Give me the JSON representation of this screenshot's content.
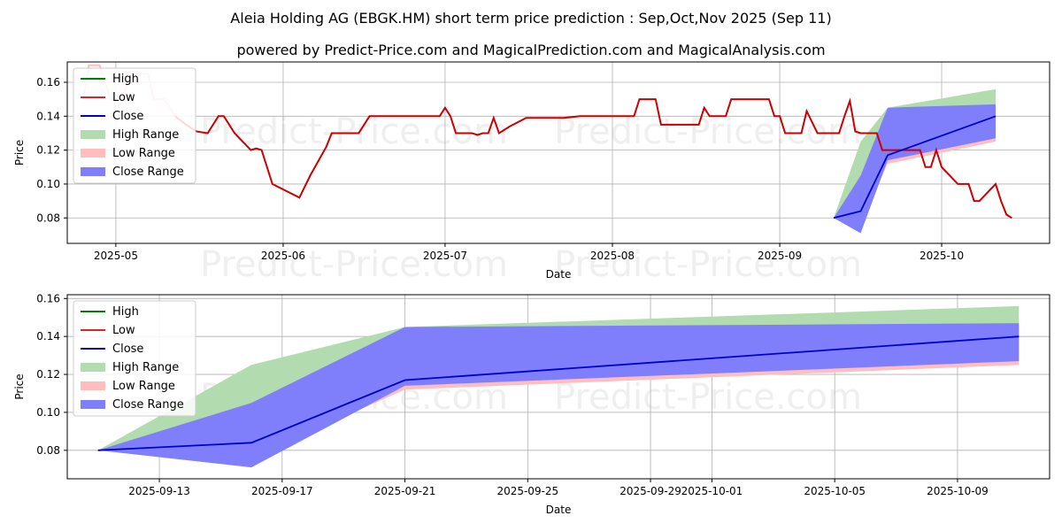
{
  "title": "Aleia Holding AG (EBGK.HM) short term price prediction : Sep,Oct,Nov 2025 (Sep 11)",
  "subtitle": "powered by Predict-Price.com and MagicalPrediction.com and MagicalAnalysis.com",
  "watermark": "Predict-Price.com",
  "colors": {
    "high": "#008000",
    "low": "#d62728",
    "low_line": "#cc0000",
    "close": "#0000cc",
    "high_range": "#b2dbb0",
    "low_range": "#ffbdbd",
    "close_range": "#7f7ffc"
  },
  "chart_data": [
    {
      "type": "line",
      "xlabel": "Date",
      "ylabel": "Price",
      "x_range": [
        "2025-04-22",
        "2025-10-21"
      ],
      "ylim": [
        0.065,
        0.172
      ],
      "y_ticks": [
        0.08,
        0.1,
        0.12,
        0.14,
        0.16
      ],
      "y_tick_labels": [
        "0.08",
        "0.10",
        "0.12",
        "0.14",
        "0.16"
      ],
      "x_ticks": [
        "2025-05-01",
        "2025-06-01",
        "2025-07-01",
        "2025-08-01",
        "2025-09-01",
        "2025-10-01"
      ],
      "x_tick_labels": [
        "2025-05",
        "2025-06",
        "2025-07",
        "2025-08",
        "2025-09",
        "2025-10"
      ],
      "grid": true,
      "legend_position": "top-left",
      "legend": [
        "High",
        "Low",
        "Close",
        "High Range",
        "Low Range",
        "Close Range"
      ],
      "history_high": [
        [
          "2025-04-25",
          0.15
        ],
        [
          "2025-04-26",
          0.17
        ],
        [
          "2025-04-28",
          0.17
        ],
        [
          "2025-04-30",
          0.15
        ],
        [
          "2025-05-02",
          0.15
        ],
        [
          "2025-05-04",
          0.165
        ],
        [
          "2025-05-07",
          0.165
        ],
        [
          "2025-05-08",
          0.15
        ],
        [
          "2025-05-10",
          0.15
        ],
        [
          "2025-05-12",
          0.14
        ]
      ],
      "history_low": [
        [
          "2025-05-12",
          0.14
        ],
        [
          "2025-05-14",
          0.135
        ],
        [
          "2025-05-16",
          0.131
        ],
        [
          "2025-05-18",
          0.13
        ],
        [
          "2025-05-20",
          0.14
        ],
        [
          "2025-05-21",
          0.14
        ],
        [
          "2025-05-23",
          0.13
        ],
        [
          "2025-05-26",
          0.12
        ],
        [
          "2025-05-27",
          0.121
        ],
        [
          "2025-05-28",
          0.12
        ],
        [
          "2025-05-30",
          0.1
        ],
        [
          "2025-06-04",
          0.092
        ],
        [
          "2025-06-06",
          0.105
        ],
        [
          "2025-06-09",
          0.122
        ],
        [
          "2025-06-10",
          0.13
        ],
        [
          "2025-06-13",
          0.13
        ],
        [
          "2025-06-15",
          0.13
        ],
        [
          "2025-06-17",
          0.14
        ],
        [
          "2025-06-19",
          0.14
        ],
        [
          "2025-06-23",
          0.14
        ],
        [
          "2025-06-30",
          0.14
        ],
        [
          "2025-07-01",
          0.145
        ],
        [
          "2025-07-02",
          0.14
        ],
        [
          "2025-07-03",
          0.13
        ],
        [
          "2025-07-06",
          0.13
        ],
        [
          "2025-07-07",
          0.129
        ],
        [
          "2025-07-08",
          0.13
        ],
        [
          "2025-07-09",
          0.13
        ],
        [
          "2025-07-10",
          0.139
        ],
        [
          "2025-07-11",
          0.13
        ],
        [
          "2025-07-13",
          0.134
        ],
        [
          "2025-07-16",
          0.139
        ],
        [
          "2025-07-20",
          0.139
        ],
        [
          "2025-07-23",
          0.139
        ],
        [
          "2025-07-26",
          0.14
        ],
        [
          "2025-08-02",
          0.14
        ],
        [
          "2025-08-05",
          0.14
        ],
        [
          "2025-08-06",
          0.15
        ],
        [
          "2025-08-09",
          0.15
        ],
        [
          "2025-08-10",
          0.135
        ],
        [
          "2025-08-14",
          0.135
        ],
        [
          "2025-08-17",
          0.135
        ],
        [
          "2025-08-18",
          0.145
        ],
        [
          "2025-08-19",
          0.14
        ],
        [
          "2025-08-22",
          0.14
        ],
        [
          "2025-08-23",
          0.15
        ],
        [
          "2025-08-27",
          0.15
        ],
        [
          "2025-08-30",
          0.15
        ],
        [
          "2025-08-31",
          0.14
        ],
        [
          "2025-09-01",
          0.14
        ],
        [
          "2025-09-02",
          0.13
        ],
        [
          "2025-09-05",
          0.13
        ],
        [
          "2025-09-06",
          0.143
        ],
        [
          "2025-09-08",
          0.13
        ],
        [
          "2025-09-12",
          0.13
        ],
        [
          "2025-09-13",
          0.14
        ],
        [
          "2025-09-14",
          0.149
        ],
        [
          "2025-09-15",
          0.131
        ],
        [
          "2025-09-16",
          0.13
        ],
        [
          "2025-09-19",
          0.13
        ],
        [
          "2025-09-20",
          0.12
        ],
        [
          "2025-09-25",
          0.12
        ],
        [
          "2025-09-27",
          0.12
        ],
        [
          "2025-09-28",
          0.11
        ],
        [
          "2025-09-29",
          0.11
        ],
        [
          "2025-09-30",
          0.12
        ],
        [
          "2025-10-01",
          0.11
        ],
        [
          "2025-10-04",
          0.1
        ],
        [
          "2025-10-06",
          0.1
        ],
        [
          "2025-10-07",
          0.09
        ],
        [
          "2025-10-08",
          0.09
        ],
        [
          "2025-10-11",
          0.1
        ],
        [
          "2025-10-12",
          0.09
        ],
        [
          "2025-10-13",
          0.082
        ],
        [
          "2025-10-14",
          0.08
        ]
      ]
    },
    {
      "type": "area",
      "xlabel": "Date",
      "ylabel": "Price",
      "x_range": [
        "2025-09-10",
        "2025-10-12"
      ],
      "ylim": [
        0.065,
        0.162
      ],
      "y_ticks": [
        0.08,
        0.1,
        0.12,
        0.14,
        0.16
      ],
      "y_tick_labels": [
        "0.08",
        "0.10",
        "0.12",
        "0.14",
        "0.16"
      ],
      "x_ticks": [
        "2025-09-13",
        "2025-09-17",
        "2025-09-21",
        "2025-09-25",
        "2025-09-29",
        "2025-10-01",
        "2025-10-05",
        "2025-10-09"
      ],
      "x_tick_labels": [
        "2025-09-13",
        "2025-09-17",
        "2025-09-21",
        "2025-09-25",
        "2025-09-29",
        "2025-10-01",
        "2025-10-05",
        "2025-10-09"
      ],
      "grid": true,
      "legend_position": "top-left",
      "legend": [
        "High",
        "Low",
        "Close",
        "High Range",
        "Low Range",
        "Close Range"
      ],
      "x": [
        "2025-09-11",
        "2025-09-16",
        "2025-09-21",
        "2025-10-11"
      ],
      "high_range": {
        "upper": [
          0.08,
          0.125,
          0.145,
          0.156
        ],
        "lower": [
          0.08,
          0.08,
          0.117,
          0.128
        ]
      },
      "low_range": {
        "upper": [
          0.08,
          0.08,
          0.115,
          0.128
        ],
        "lower": [
          0.08,
          0.076,
          0.112,
          0.125
        ]
      },
      "close_range": {
        "upper": [
          0.08,
          0.105,
          0.145,
          0.147
        ],
        "lower": [
          0.08,
          0.071,
          0.114,
          0.127
        ]
      },
      "close": [
        0.08,
        0.084,
        0.117,
        0.14
      ]
    }
  ]
}
